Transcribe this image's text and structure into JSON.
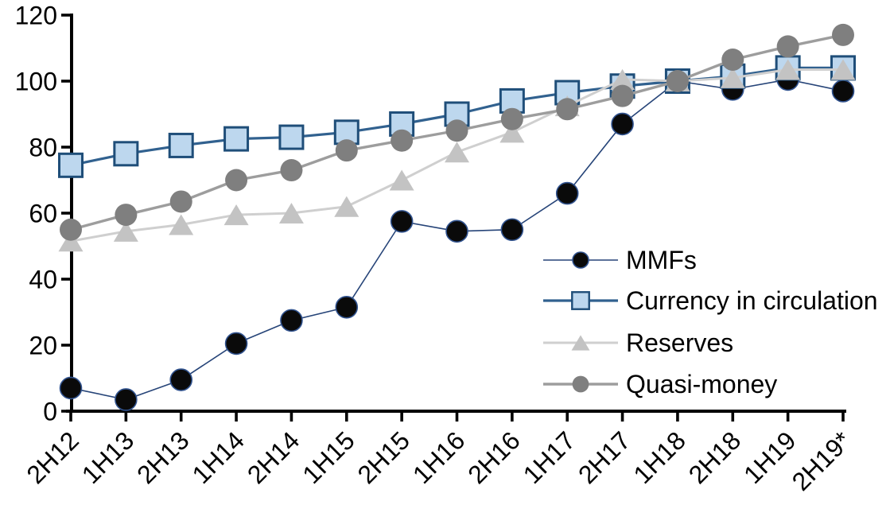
{
  "chart_data": {
    "type": "line",
    "title": "",
    "xlabel": "",
    "ylabel": "",
    "grid": false,
    "background": "#ffffff",
    "axis_color": "#000000",
    "ylim": [
      0,
      120
    ],
    "yticks": [
      0,
      20,
      40,
      60,
      80,
      100,
      120
    ],
    "legend_position": "inside-right",
    "categories": [
      "2H12",
      "1H13",
      "2H13",
      "1H14",
      "2H14",
      "1H15",
      "2H15",
      "1H16",
      "2H16",
      "1H17",
      "2H17",
      "1H18",
      "2H18",
      "1H19",
      "2H19*"
    ],
    "series": [
      {
        "name": "MMFs",
        "marker": "circle",
        "marker_fill": "#0a0a0a",
        "marker_stroke": "#31538f",
        "marker_stroke_width": 1.6,
        "marker_size": 27,
        "line_color": "#264478",
        "line_width": 1.6,
        "values": [
          7,
          3.5,
          9.5,
          20.5,
          27.5,
          31.5,
          57.5,
          54.5,
          55,
          66,
          87,
          100,
          97.5,
          100.5,
          97
        ]
      },
      {
        "name": "Currency in circulation",
        "marker": "square",
        "marker_fill": "#bdd7ee",
        "marker_stroke": "#1f4e79",
        "marker_stroke_width": 3,
        "marker_size": 29,
        "line_color": "#31618f",
        "line_width": 3.2,
        "values": [
          74.5,
          78,
          80.5,
          82.5,
          83,
          84.5,
          87,
          90,
          94,
          96.5,
          98.5,
          100,
          101.5,
          104,
          104
        ]
      },
      {
        "name": "Reserves",
        "marker": "triangle",
        "marker_fill": "#c3c3c3",
        "marker_stroke": "none",
        "marker_stroke_width": 0,
        "marker_size": 31,
        "line_color": "#cfcfcf",
        "line_width": 3,
        "values": [
          51.5,
          54.5,
          56.5,
          59.5,
          60,
          62,
          70,
          78.5,
          84.5,
          92.5,
          100.5,
          100,
          101,
          103.5,
          103.5
        ]
      },
      {
        "name": "Quasi-money",
        "marker": "circle",
        "marker_fill": "#7f7f7f",
        "marker_stroke": "none",
        "marker_stroke_width": 0,
        "marker_size": 28,
        "line_color": "#9d9d9d",
        "line_width": 3.4,
        "values": [
          55,
          59.5,
          63.5,
          70,
          73,
          79,
          82,
          85,
          88.5,
          91.5,
          95.5,
          100,
          106.5,
          110.5,
          114
        ]
      }
    ]
  }
}
